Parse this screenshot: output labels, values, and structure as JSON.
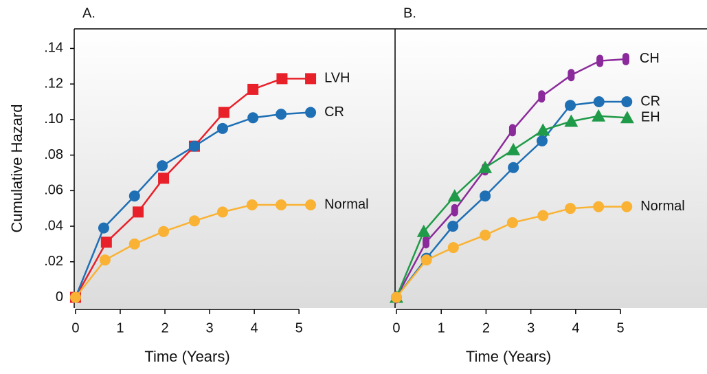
{
  "chart_data": [
    {
      "type": "line",
      "title": "A.",
      "x_label": "Time (Years)",
      "y_label": "Cumulative Hazard",
      "xlim": [
        -0.03,
        7.15
      ],
      "ylim": [
        -0.006,
        0.151
      ],
      "xticks": [
        0,
        1,
        2,
        3,
        4,
        5
      ],
      "yticks": [
        0,
        {
          "value": 0.02,
          "label": ".02"
        },
        {
          "value": 0.04,
          "label": ".04"
        },
        {
          "value": 0.06,
          "label": ".06"
        },
        {
          "value": 0.08,
          "label": ".08"
        },
        {
          "value": 0.1,
          "label": ".10"
        },
        {
          "value": 0.12,
          "label": ".12"
        },
        {
          "value": 0.14,
          "label": ".14"
        }
      ],
      "series": [
        {
          "name": "LVH",
          "color": "#e8202a",
          "marker": "square",
          "x": [
            0,
            0.69,
            1.4,
            1.97,
            2.66,
            3.32,
            3.97,
            4.62,
            5.26
          ],
          "values": [
            0,
            0.031,
            0.048,
            0.067,
            0.085,
            0.104,
            0.117,
            0.123,
            0.123
          ]
        },
        {
          "name": "CR",
          "color": "#1f6fb5",
          "marker": "circle",
          "x": [
            0,
            0.63,
            1.32,
            1.94,
            2.66,
            3.29,
            3.97,
            4.6,
            5.26
          ],
          "values": [
            0,
            0.039,
            0.057,
            0.074,
            0.085,
            0.095,
            0.101,
            0.103,
            0.104
          ]
        },
        {
          "name": "Normal",
          "color": "#f9b233",
          "marker": "circle",
          "x": [
            0,
            0.66,
            1.32,
            1.97,
            2.66,
            3.29,
            3.95,
            4.6,
            5.26
          ],
          "values": [
            0,
            0.021,
            0.03,
            0.037,
            0.043,
            0.048,
            0.052,
            0.052,
            0.052
          ]
        }
      ]
    },
    {
      "type": "line",
      "title": "B.",
      "x_label": "Time (Years)",
      "xlim": [
        -0.03,
        6.93
      ],
      "ylim": [
        -0.006,
        0.151
      ],
      "xticks": [
        0,
        1,
        2,
        3,
        4,
        5
      ],
      "series": [
        {
          "name": "CH",
          "color": "#8b2a9b",
          "marker": "capsule",
          "x": [
            0,
            0.66,
            1.3,
            1.98,
            2.59,
            3.24,
            3.9,
            4.54,
            5.12
          ],
          "values": [
            0,
            0.031,
            0.049,
            0.072,
            0.094,
            0.113,
            0.125,
            0.133,
            0.134
          ]
        },
        {
          "name": "CR",
          "color": "#1f6fb5",
          "marker": "circle",
          "x": [
            0,
            0.67,
            1.26,
            1.98,
            2.61,
            3.25,
            3.88,
            4.52,
            5.14
          ],
          "values": [
            0,
            0.022,
            0.04,
            0.057,
            0.073,
            0.088,
            0.108,
            0.11,
            0.11
          ]
        },
        {
          "name": "EH",
          "color": "#1f9a48",
          "marker": "triangle",
          "x": [
            0,
            0.61,
            1.3,
            1.98,
            2.61,
            3.27,
            3.9,
            4.51,
            5.15
          ],
          "values": [
            0,
            0.037,
            0.057,
            0.073,
            0.083,
            0.094,
            0.099,
            0.102,
            0.101
          ]
        },
        {
          "name": "Normal",
          "color": "#f9b233",
          "marker": "circle",
          "x": [
            0,
            0.67,
            1.27,
            1.98,
            2.59,
            3.27,
            3.88,
            4.51,
            5.14
          ],
          "values": [
            0,
            0.021,
            0.028,
            0.035,
            0.042,
            0.046,
            0.05,
            0.051,
            0.051
          ]
        }
      ]
    }
  ]
}
